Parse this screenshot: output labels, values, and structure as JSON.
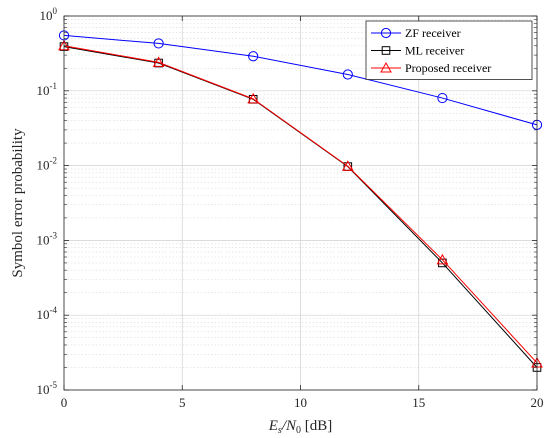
{
  "chart_data": {
    "type": "line",
    "title": "",
    "xlabel": {
      "base": "E",
      "sub1": "s",
      "slash": "/N",
      "sub2": "0",
      "unit": " [dB]"
    },
    "ylabel": "Symbol error probability",
    "xlim": [
      0,
      20
    ],
    "ylim": [
      1e-05,
      1
    ],
    "yscale": "log",
    "grid": true,
    "legend_position": "top-right",
    "x_ticks": [
      {
        "value": 0,
        "label": "0"
      },
      {
        "value": 5,
        "label": "5"
      },
      {
        "value": 10,
        "label": "10"
      },
      {
        "value": 15,
        "label": "15"
      },
      {
        "value": 20,
        "label": "20"
      }
    ],
    "y_ticks": [
      {
        "value": 1,
        "base": "10",
        "exp": "0"
      },
      {
        "value": 0.1,
        "base": "10",
        "exp": "-1"
      },
      {
        "value": 0.01,
        "base": "10",
        "exp": "-2"
      },
      {
        "value": 0.001,
        "base": "10",
        "exp": "-3"
      },
      {
        "value": 0.0001,
        "base": "10",
        "exp": "-4"
      },
      {
        "value": 1e-05,
        "base": "10",
        "exp": "-5"
      }
    ],
    "series": [
      {
        "name": "ZF receiver",
        "color": "#0000ff",
        "marker": "circle",
        "x": [
          0,
          4,
          8,
          12,
          16,
          20
        ],
        "y": [
          0.55,
          0.43,
          0.29,
          0.165,
          0.08,
          0.035
        ]
      },
      {
        "name": "ML receiver",
        "color": "#000000",
        "marker": "square",
        "x": [
          0,
          4,
          8,
          12,
          16,
          20
        ],
        "y": [
          0.39,
          0.235,
          0.077,
          0.0097,
          0.0005,
          2e-05
        ]
      },
      {
        "name": "Proposed receiver",
        "color": "#ff0000",
        "marker": "triangle",
        "x": [
          0,
          4,
          8,
          12,
          16,
          20
        ],
        "y": [
          0.4,
          0.24,
          0.078,
          0.0098,
          0.00055,
          2.3e-05
        ]
      }
    ]
  }
}
